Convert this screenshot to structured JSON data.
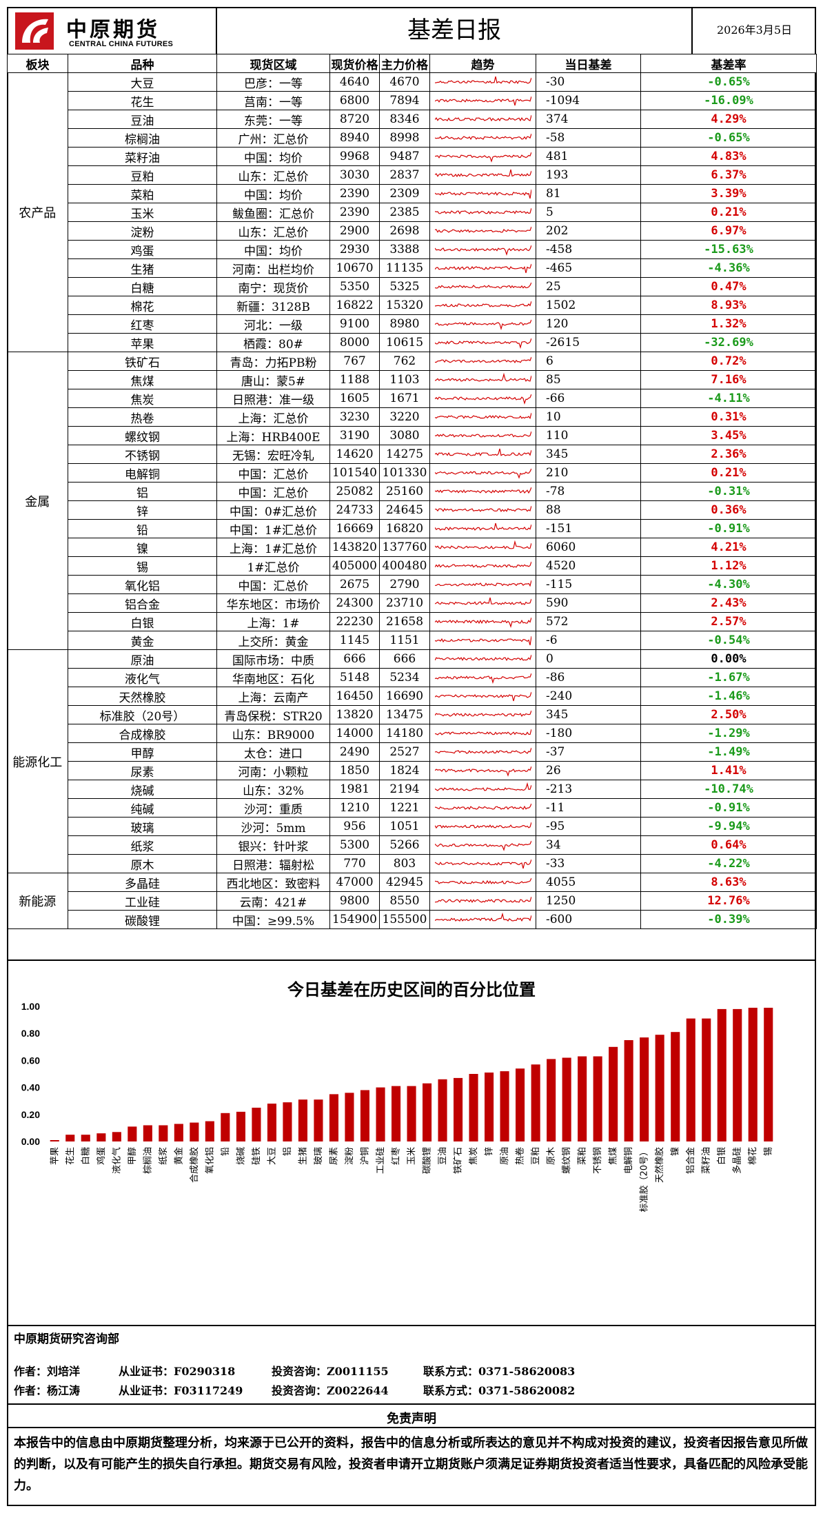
{
  "header": {
    "logo_cn": "中原期货",
    "logo_en": "CENTRAL CHINA FUTURES",
    "title": "基差日报",
    "date": "2026年3月5日"
  },
  "table": {
    "columns": [
      "板块",
      "品种",
      "现货区域",
      "现货价格",
      "主力价格",
      "趋势",
      "当日基差",
      "基差率"
    ],
    "sections": [
      {
        "name": "农产品",
        "rows": [
          {
            "variety": "大豆",
            "region": "巴彦：一等",
            "spot": "4640",
            "main": "4670",
            "basis": "-30",
            "rate": "-0.65%"
          },
          {
            "variety": "花生",
            "region": "莒南：一等",
            "spot": "6800",
            "main": "7894",
            "basis": "-1094",
            "rate": "-16.09%"
          },
          {
            "variety": "豆油",
            "region": "东莞：一等",
            "spot": "8720",
            "main": "8346",
            "basis": "374",
            "rate": "4.29%"
          },
          {
            "variety": "棕榈油",
            "region": "广州：汇总价",
            "spot": "8940",
            "main": "8998",
            "basis": "-58",
            "rate": "-0.65%"
          },
          {
            "variety": "菜籽油",
            "region": "中国：均价",
            "spot": "9968",
            "main": "9487",
            "basis": "481",
            "rate": "4.83%"
          },
          {
            "variety": "豆粕",
            "region": "山东：汇总价",
            "spot": "3030",
            "main": "2837",
            "basis": "193",
            "rate": "6.37%"
          },
          {
            "variety": "菜粕",
            "region": "中国：均价",
            "spot": "2390",
            "main": "2309",
            "basis": "81",
            "rate": "3.39%"
          },
          {
            "variety": "玉米",
            "region": "鲅鱼圈：汇总价",
            "spot": "2390",
            "main": "2385",
            "basis": "5",
            "rate": "0.21%"
          },
          {
            "variety": "淀粉",
            "region": "山东：汇总价",
            "spot": "2900",
            "main": "2698",
            "basis": "202",
            "rate": "6.97%"
          },
          {
            "variety": "鸡蛋",
            "region": "中国：均价",
            "spot": "2930",
            "main": "3388",
            "basis": "-458",
            "rate": "-15.63%"
          },
          {
            "variety": "生猪",
            "region": "河南：出栏均价",
            "spot": "10670",
            "main": "11135",
            "basis": "-465",
            "rate": "-4.36%"
          },
          {
            "variety": "白糖",
            "region": "南宁：现货价",
            "spot": "5350",
            "main": "5325",
            "basis": "25",
            "rate": "0.47%"
          },
          {
            "variety": "棉花",
            "region": "新疆：3128B",
            "spot": "16822",
            "main": "15320",
            "basis": "1502",
            "rate": "8.93%"
          },
          {
            "variety": "红枣",
            "region": "河北：一级",
            "spot": "9100",
            "main": "8980",
            "basis": "120",
            "rate": "1.32%"
          },
          {
            "variety": "苹果",
            "region": "栖霞：80#",
            "spot": "8000",
            "main": "10615",
            "basis": "-2615",
            "rate": "-32.69%"
          }
        ]
      },
      {
        "name": "金属",
        "rows": [
          {
            "variety": "铁矿石",
            "region": "青岛：力拓PB粉",
            "spot": "767",
            "main": "762",
            "basis": "6",
            "rate": "0.72%"
          },
          {
            "variety": "焦煤",
            "region": "唐山：蒙5#",
            "spot": "1188",
            "main": "1103",
            "basis": "85",
            "rate": "7.16%"
          },
          {
            "variety": "焦炭",
            "region": "日照港：准一级",
            "spot": "1605",
            "main": "1671",
            "basis": "-66",
            "rate": "-4.11%"
          },
          {
            "variety": "热卷",
            "region": "上海：汇总价",
            "spot": "3230",
            "main": "3220",
            "basis": "10",
            "rate": "0.31%"
          },
          {
            "variety": "螺纹钢",
            "region": "上海：HRB400E",
            "spot": "3190",
            "main": "3080",
            "basis": "110",
            "rate": "3.45%"
          },
          {
            "variety": "不锈钢",
            "region": "无锡：宏旺冷轧",
            "spot": "14620",
            "main": "14275",
            "basis": "345",
            "rate": "2.36%"
          },
          {
            "variety": "电解铜",
            "region": "中国：汇总价",
            "spot": "101540",
            "main": "101330",
            "basis": "210",
            "rate": "0.21%"
          },
          {
            "variety": "铝",
            "region": "中国：汇总价",
            "spot": "25082",
            "main": "25160",
            "basis": "-78",
            "rate": "-0.31%"
          },
          {
            "variety": "锌",
            "region": "中国：0#汇总价",
            "spot": "24733",
            "main": "24645",
            "basis": "88",
            "rate": "0.36%"
          },
          {
            "variety": "铅",
            "region": "中国：1#汇总价",
            "spot": "16669",
            "main": "16820",
            "basis": "-151",
            "rate": "-0.91%"
          },
          {
            "variety": "镍",
            "region": "上海：1#汇总价",
            "spot": "143820",
            "main": "137760",
            "basis": "6060",
            "rate": "4.21%"
          },
          {
            "variety": "锡",
            "region": "1#汇总价",
            "spot": "405000",
            "main": "400480",
            "basis": "4520",
            "rate": "1.12%"
          },
          {
            "variety": "氧化铝",
            "region": "中国：汇总价",
            "spot": "2675",
            "main": "2790",
            "basis": "-115",
            "rate": "-4.30%"
          },
          {
            "variety": "铝合金",
            "region": "华东地区：市场价",
            "spot": "24300",
            "main": "23710",
            "basis": "590",
            "rate": "2.43%"
          },
          {
            "variety": "白银",
            "region": "上海：1#",
            "spot": "22230",
            "main": "21658",
            "basis": "572",
            "rate": "2.57%"
          },
          {
            "variety": "黄金",
            "region": "上交所：黄金",
            "spot": "1145",
            "main": "1151",
            "basis": "-6",
            "rate": "-0.54%"
          }
        ]
      },
      {
        "name": "能源化工",
        "rows": [
          {
            "variety": "原油",
            "region": "国际市场：中质",
            "spot": "666",
            "main": "666",
            "basis": "0",
            "rate": "0.00%"
          },
          {
            "variety": "液化气",
            "region": "华南地区：石化",
            "spot": "5148",
            "main": "5234",
            "basis": "-86",
            "rate": "-1.67%"
          },
          {
            "variety": "天然橡胶",
            "region": "上海：云南产",
            "spot": "16450",
            "main": "16690",
            "basis": "-240",
            "rate": "-1.46%"
          },
          {
            "variety": "标准胶（20号）",
            "region": "青岛保税：STR20",
            "spot": "13820",
            "main": "13475",
            "basis": "345",
            "rate": "2.50%"
          },
          {
            "variety": "合成橡胶",
            "region": "山东：BR9000",
            "spot": "14000",
            "main": "14180",
            "basis": "-180",
            "rate": "-1.29%"
          },
          {
            "variety": "甲醇",
            "region": "太仓：进口",
            "spot": "2490",
            "main": "2527",
            "basis": "-37",
            "rate": "-1.49%"
          },
          {
            "variety": "尿素",
            "region": "河南：小颗粒",
            "spot": "1850",
            "main": "1824",
            "basis": "26",
            "rate": "1.41%"
          },
          {
            "variety": "烧碱",
            "region": "山东：32%",
            "spot": "1981",
            "main": "2194",
            "basis": "-213",
            "rate": "-10.74%"
          },
          {
            "variety": "纯碱",
            "region": "沙河：重质",
            "spot": "1210",
            "main": "1221",
            "basis": "-11",
            "rate": "-0.91%"
          },
          {
            "variety": "玻璃",
            "region": "沙河：5mm",
            "spot": "956",
            "main": "1051",
            "basis": "-95",
            "rate": "-9.94%"
          },
          {
            "variety": "纸浆",
            "region": "银兴：针叶浆",
            "spot": "5300",
            "main": "5266",
            "basis": "34",
            "rate": "0.64%"
          },
          {
            "variety": "原木",
            "region": "日照港：辐射松",
            "spot": "770",
            "main": "803",
            "basis": "-33",
            "rate": "-4.22%"
          }
        ]
      },
      {
        "name": "新能源",
        "rows": [
          {
            "variety": "多晶硅",
            "region": "西北地区：致密料",
            "spot": "47000",
            "main": "42945",
            "basis": "4055",
            "rate": "8.63%"
          },
          {
            "variety": "工业硅",
            "region": "云南：421#",
            "spot": "9800",
            "main": "8550",
            "basis": "1250",
            "rate": "12.76%"
          },
          {
            "variety": "碳酸锂",
            "region": "中国：≥99.5%",
            "spot": "154900",
            "main": "155500",
            "basis": "-600",
            "rate": "-0.39%"
          }
        ]
      }
    ],
    "colors": {
      "positive": "#d40000",
      "negative": "#1a9a1a",
      "trend": "#d40000"
    }
  },
  "chart_data": {
    "type": "bar",
    "title": "今日基差在历史区间的百分比位置",
    "categories": [
      "苹果",
      "花生",
      "白糖",
      "鸡蛋",
      "液化气",
      "甲醇",
      "棕榈油",
      "纸浆",
      "黄金",
      "合成橡胶",
      "氧化铝",
      "铅",
      "烧碱",
      "硅铁",
      "大豆",
      "铝",
      "生猪",
      "玻璃",
      "尿素",
      "淀粉",
      "沪铜",
      "工业硅",
      "红枣",
      "玉米",
      "碳酸锂",
      "豆油",
      "铁矿石",
      "焦炭",
      "锌",
      "原油",
      "热卷",
      "豆粕",
      "原木",
      "螺纹钢",
      "菜粕",
      "不锈钢",
      "焦煤",
      "电解铜",
      "标准胶（20号）",
      "天然橡胶",
      "镍",
      "铝合金",
      "菜籽油",
      "白银",
      "多晶硅",
      "棉花",
      "锡"
    ],
    "values": [
      0.01,
      0.05,
      0.05,
      0.06,
      0.07,
      0.11,
      0.12,
      0.12,
      0.13,
      0.14,
      0.15,
      0.21,
      0.22,
      0.25,
      0.28,
      0.29,
      0.31,
      0.31,
      0.35,
      0.36,
      0.38,
      0.4,
      0.41,
      0.41,
      0.43,
      0.46,
      0.47,
      0.5,
      0.51,
      0.52,
      0.54,
      0.57,
      0.61,
      0.62,
      0.63,
      0.63,
      0.7,
      0.75,
      0.77,
      0.79,
      0.81,
      0.91,
      0.91,
      0.98,
      0.98,
      0.99,
      0.99
    ],
    "ylim": [
      0,
      1.0
    ],
    "yticks": [
      "1.00",
      "0.80",
      "0.60",
      "0.40",
      "0.20",
      "0.00"
    ],
    "color": "#c00000",
    "grid": false
  },
  "footer": {
    "dept": "中原期货研究咨询部",
    "authors": [
      {
        "author": "作者：刘培洋",
        "cert": "从业证书：F0290318",
        "consult": "投资咨询：Z0011155",
        "contact": "联系方式：0371-58620083"
      },
      {
        "author": "作者：杨江涛",
        "cert": "从业证书：F03117249",
        "consult": "投资咨询：Z0022644",
        "contact": "联系方式：0371-58620082"
      }
    ],
    "disclaimer_title": "免责声明",
    "disclaimer": "本报告中的信息由中原期货整理分析，均来源于已公开的资料，报告中的信息分析或所表达的意见并不构成对投资的建议，投资者因报告意见所做的判断，以及有可能产生的损失自行承担。期货交易有风险，投资者申请开立期货账户须满足证券期货投资者适当性要求，具备匹配的风险承受能力。"
  }
}
